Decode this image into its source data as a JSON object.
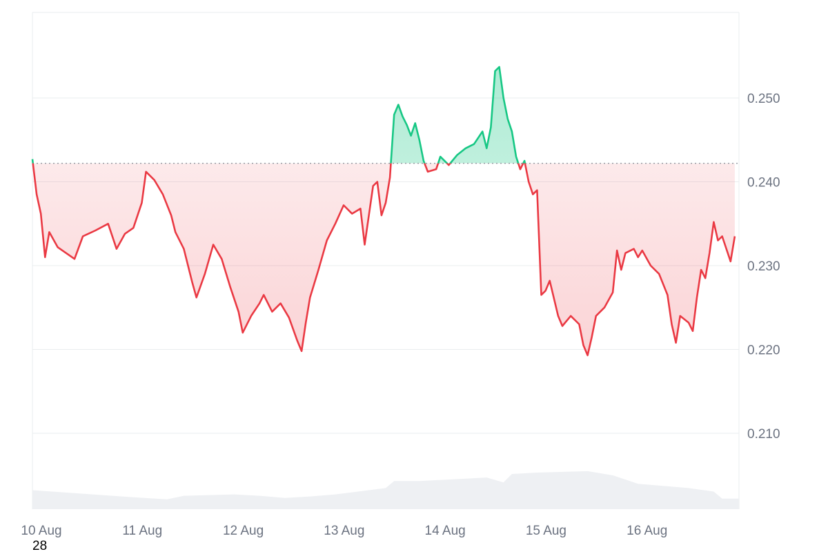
{
  "chart_data": {
    "type": "area",
    "title": "",
    "xlabel": "",
    "ylabel": "",
    "baseline": 0.2422,
    "colors": {
      "above": "#16c784",
      "below": "#ea3943",
      "grid": "#eaecef",
      "volume": "#eef0f3",
      "baseline": "#8a8f98"
    },
    "grid": true,
    "y_axis_position": "right",
    "ylim": [
      0.2,
      0.26
    ],
    "xlim": [
      "2024-08-10 00:00",
      "2024-08-17 00:00"
    ],
    "x_ticks": [
      "10 Aug",
      "11 Aug",
      "12 Aug",
      "13 Aug",
      "14 Aug",
      "15 Aug",
      "16 Aug"
    ],
    "y_ticks": [
      "0.210",
      "0.220",
      "0.230",
      "0.240",
      "0.250"
    ],
    "series": [
      {
        "values": [
          [
            "2024-08-10 00:00",
            0.2427
          ],
          [
            "2024-08-10 01:00",
            0.2385
          ],
          [
            "2024-08-10 02:00",
            0.2362
          ],
          [
            "2024-08-10 03:00",
            0.231
          ],
          [
            "2024-08-10 04:00",
            0.234
          ],
          [
            "2024-08-10 06:00",
            0.2322
          ],
          [
            "2024-08-10 08:00",
            0.2315
          ],
          [
            "2024-08-10 10:00",
            0.2308
          ],
          [
            "2024-08-10 12:00",
            0.2335
          ],
          [
            "2024-08-10 15:00",
            0.2342
          ],
          [
            "2024-08-10 18:00",
            0.235
          ],
          [
            "2024-08-10 20:00",
            0.232
          ],
          [
            "2024-08-10 22:00",
            0.2338
          ],
          [
            "2024-08-11 00:00",
            0.2345
          ],
          [
            "2024-08-11 02:00",
            0.2375
          ],
          [
            "2024-08-11 03:00",
            0.2412
          ],
          [
            "2024-08-11 05:00",
            0.2402
          ],
          [
            "2024-08-11 07:00",
            0.2385
          ],
          [
            "2024-08-11 09:00",
            0.236
          ],
          [
            "2024-08-11 10:00",
            0.234
          ],
          [
            "2024-08-11 12:00",
            0.232
          ],
          [
            "2024-08-11 14:00",
            0.228
          ],
          [
            "2024-08-11 15:00",
            0.2262
          ],
          [
            "2024-08-11 17:00",
            0.229
          ],
          [
            "2024-08-11 19:00",
            0.2325
          ],
          [
            "2024-08-11 21:00",
            0.2308
          ],
          [
            "2024-08-11 23:00",
            0.2275
          ],
          [
            "2024-08-12 01:00",
            0.2245
          ],
          [
            "2024-08-12 02:00",
            0.222
          ],
          [
            "2024-08-12 04:00",
            0.224
          ],
          [
            "2024-08-12 06:00",
            0.2255
          ],
          [
            "2024-08-12 07:00",
            0.2265
          ],
          [
            "2024-08-12 09:00",
            0.2245
          ],
          [
            "2024-08-12 11:00",
            0.2255
          ],
          [
            "2024-08-12 13:00",
            0.2238
          ],
          [
            "2024-08-12 15:00",
            0.221
          ],
          [
            "2024-08-12 16:00",
            0.2198
          ],
          [
            "2024-08-12 17:00",
            0.2232
          ],
          [
            "2024-08-12 18:00",
            0.2262
          ],
          [
            "2024-08-12 20:00",
            0.2295
          ],
          [
            "2024-08-12 22:00",
            0.233
          ],
          [
            "2024-08-13 00:00",
            0.235
          ],
          [
            "2024-08-13 02:00",
            0.2372
          ],
          [
            "2024-08-13 04:00",
            0.2362
          ],
          [
            "2024-08-13 06:00",
            0.2368
          ],
          [
            "2024-08-13 07:00",
            0.2325
          ],
          [
            "2024-08-13 08:00",
            0.236
          ],
          [
            "2024-08-13 09:00",
            0.2395
          ],
          [
            "2024-08-13 10:00",
            0.24
          ],
          [
            "2024-08-13 11:00",
            0.236
          ],
          [
            "2024-08-13 12:00",
            0.2375
          ],
          [
            "2024-08-13 13:00",
            0.2405
          ],
          [
            "2024-08-13 14:00",
            0.248
          ],
          [
            "2024-08-13 15:00",
            0.2492
          ],
          [
            "2024-08-13 16:00",
            0.2478
          ],
          [
            "2024-08-13 17:00",
            0.2468
          ],
          [
            "2024-08-13 18:00",
            0.2455
          ],
          [
            "2024-08-13 19:00",
            0.247
          ],
          [
            "2024-08-13 20:00",
            0.245
          ],
          [
            "2024-08-13 21:00",
            0.2425
          ],
          [
            "2024-08-13 22:00",
            0.2412
          ],
          [
            "2024-08-14 00:00",
            0.2415
          ],
          [
            "2024-08-14 01:00",
            0.243
          ],
          [
            "2024-08-14 03:00",
            0.242
          ],
          [
            "2024-08-14 05:00",
            0.2432
          ],
          [
            "2024-08-14 07:00",
            0.244
          ],
          [
            "2024-08-14 09:00",
            0.2445
          ],
          [
            "2024-08-14 11:00",
            0.246
          ],
          [
            "2024-08-14 12:00",
            0.244
          ],
          [
            "2024-08-14 13:00",
            0.2465
          ],
          [
            "2024-08-14 14:00",
            0.2532
          ],
          [
            "2024-08-14 15:00",
            0.2537
          ],
          [
            "2024-08-14 16:00",
            0.25
          ],
          [
            "2024-08-14 17:00",
            0.2475
          ],
          [
            "2024-08-14 18:00",
            0.246
          ],
          [
            "2024-08-14 19:00",
            0.243
          ],
          [
            "2024-08-14 20:00",
            0.2415
          ],
          [
            "2024-08-14 21:00",
            0.2425
          ],
          [
            "2024-08-14 22:00",
            0.24
          ],
          [
            "2024-08-14 23:00",
            0.2385
          ],
          [
            "2024-08-15 00:00",
            0.239
          ],
          [
            "2024-08-15 01:00",
            0.2265
          ],
          [
            "2024-08-15 02:00",
            0.227
          ],
          [
            "2024-08-15 03:00",
            0.2282
          ],
          [
            "2024-08-15 05:00",
            0.224
          ],
          [
            "2024-08-15 06:00",
            0.2228
          ],
          [
            "2024-08-15 08:00",
            0.224
          ],
          [
            "2024-08-15 10:00",
            0.223
          ],
          [
            "2024-08-15 11:00",
            0.2205
          ],
          [
            "2024-08-15 12:00",
            0.2193
          ],
          [
            "2024-08-15 13:00",
            0.2215
          ],
          [
            "2024-08-15 14:00",
            0.224
          ],
          [
            "2024-08-15 16:00",
            0.225
          ],
          [
            "2024-08-15 18:00",
            0.2268
          ],
          [
            "2024-08-15 19:00",
            0.2318
          ],
          [
            "2024-08-15 20:00",
            0.2295
          ],
          [
            "2024-08-15 21:00",
            0.2315
          ],
          [
            "2024-08-15 23:00",
            0.232
          ],
          [
            "2024-08-16 00:00",
            0.231
          ],
          [
            "2024-08-16 01:00",
            0.2318
          ],
          [
            "2024-08-16 03:00",
            0.23
          ],
          [
            "2024-08-16 05:00",
            0.229
          ],
          [
            "2024-08-16 07:00",
            0.2265
          ],
          [
            "2024-08-16 08:00",
            0.223
          ],
          [
            "2024-08-16 09:00",
            0.2208
          ],
          [
            "2024-08-16 10:00",
            0.224
          ],
          [
            "2024-08-16 12:00",
            0.2232
          ],
          [
            "2024-08-16 13:00",
            0.2222
          ],
          [
            "2024-08-16 14:00",
            0.2262
          ],
          [
            "2024-08-16 15:00",
            0.2295
          ],
          [
            "2024-08-16 16:00",
            0.2285
          ],
          [
            "2024-08-16 17:00",
            0.2315
          ],
          [
            "2024-08-16 18:00",
            0.2352
          ],
          [
            "2024-08-16 19:00",
            0.233
          ],
          [
            "2024-08-16 20:00",
            0.2335
          ],
          [
            "2024-08-16 22:00",
            0.2305
          ],
          [
            "2024-08-16 23:00",
            0.2335
          ]
        ]
      }
    ],
    "volume": {
      "values": [
        [
          "2024-08-10 00:00",
          0.27
        ],
        [
          "2024-08-10 12:00",
          0.22
        ],
        [
          "2024-08-11 00:00",
          0.17
        ],
        [
          "2024-08-11 08:00",
          0.14
        ],
        [
          "2024-08-11 12:00",
          0.19
        ],
        [
          "2024-08-12 00:00",
          0.21
        ],
        [
          "2024-08-12 06:00",
          0.19
        ],
        [
          "2024-08-12 12:00",
          0.16
        ],
        [
          "2024-08-12 18:00",
          0.18
        ],
        [
          "2024-08-13 00:00",
          0.21
        ],
        [
          "2024-08-13 12:00",
          0.3
        ],
        [
          "2024-08-13 14:00",
          0.4
        ],
        [
          "2024-08-13 20:00",
          0.4
        ],
        [
          "2024-08-14 06:00",
          0.43
        ],
        [
          "2024-08-14 12:00",
          0.45
        ],
        [
          "2024-08-14 16:00",
          0.38
        ],
        [
          "2024-08-14 18:00",
          0.5
        ],
        [
          "2024-08-15 00:00",
          0.52
        ],
        [
          "2024-08-15 12:00",
          0.54
        ],
        [
          "2024-08-15 18:00",
          0.48
        ],
        [
          "2024-08-16 00:00",
          0.36
        ],
        [
          "2024-08-16 12:00",
          0.3
        ],
        [
          "2024-08-16 18:00",
          0.25
        ],
        [
          "2024-08-16 20:00",
          0.15
        ],
        [
          "2024-08-17 00:00",
          0.15
        ]
      ]
    }
  },
  "stray_label": "28"
}
